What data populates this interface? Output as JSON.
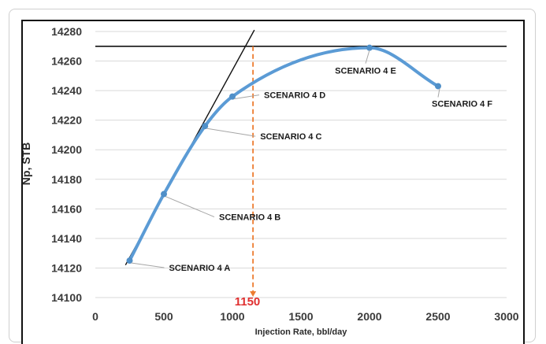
{
  "chart_data": {
    "type": "line",
    "title": "",
    "xlabel": "Injection Rate, bbl/day",
    "ylabel": "Np, STB",
    "xlim": [
      0,
      3000
    ],
    "ylim": [
      14100,
      14280
    ],
    "xticks": [
      0,
      500,
      1000,
      1500,
      2000,
      2500,
      3000
    ],
    "yticks": [
      14100,
      14120,
      14140,
      14160,
      14180,
      14200,
      14220,
      14240,
      14260,
      14280
    ],
    "grid": "horizontal",
    "series": [
      {
        "name": "",
        "color": "#5b9bd5",
        "points": [
          {
            "x": 250,
            "y": 14125,
            "label": "SCENARIO 4 A"
          },
          {
            "x": 500,
            "y": 14170,
            "label": "SCENARIO 4 B"
          },
          {
            "x": 800,
            "y": 14216,
            "label": "SCENARIO 4 C"
          },
          {
            "x": 1000,
            "y": 14236,
            "label": "SCENARIO 4 D"
          },
          {
            "x": 2000,
            "y": 14269,
            "label": "SCENARIO 4 E"
          },
          {
            "x": 2500,
            "y": 14243,
            "label": "SCENARIO 4 F"
          }
        ]
      }
    ],
    "reference_lines": {
      "horizontal_y": 14270,
      "tangent": {
        "x1": 220,
        "y1": 14122,
        "x2": 1160,
        "y2": 14281
      },
      "vertical_x": 1150,
      "vertical_label": "1150",
      "vertical_color": "#ed7d31"
    }
  }
}
